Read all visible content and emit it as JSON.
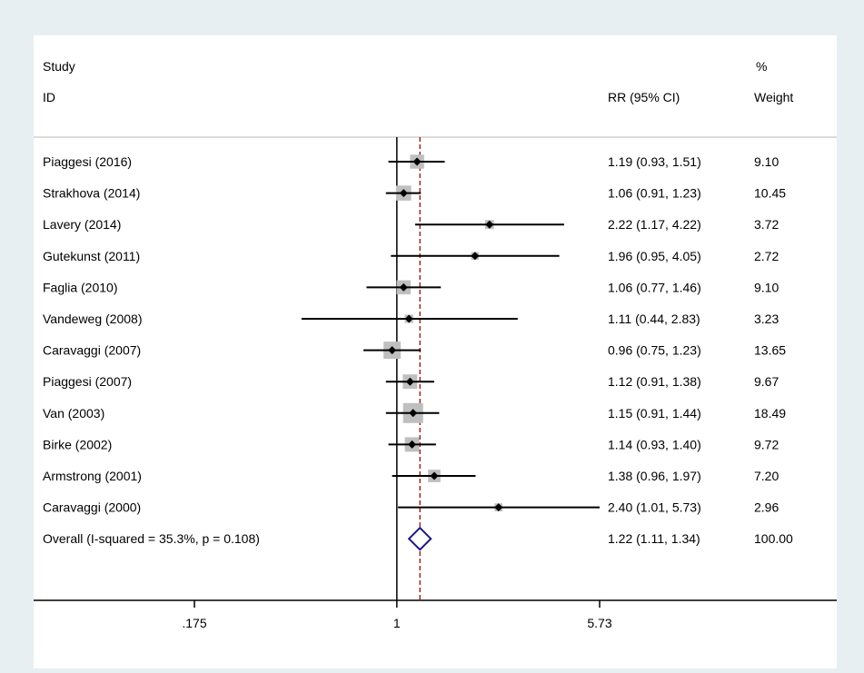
{
  "chart_data": {
    "type": "forest",
    "x_scale": "log",
    "xlim": [
      0.175,
      5.73
    ],
    "ticks": [
      ".175",
      "1",
      "5.73"
    ],
    "tick_values": [
      0.175,
      1,
      5.73
    ],
    "reference_line": 1,
    "overall_effect_line": 1.22,
    "header": {
      "col1_line1": "Study",
      "col1_line2": "ID",
      "col2": "RR (95% CI)",
      "col3_line1": "%",
      "col3_line2": "Weight"
    },
    "studies": [
      {
        "label": "Piaggesi (2016)",
        "rr": 1.19,
        "lo": 0.93,
        "hi": 1.51,
        "rr_text": "1.19 (0.93, 1.51)",
        "weight": "9.10"
      },
      {
        "label": "Strakhova (2014)",
        "rr": 1.06,
        "lo": 0.91,
        "hi": 1.23,
        "rr_text": "1.06 (0.91, 1.23)",
        "weight": "10.45"
      },
      {
        "label": "Lavery (2014)",
        "rr": 2.22,
        "lo": 1.17,
        "hi": 4.22,
        "rr_text": "2.22 (1.17, 4.22)",
        "weight": "3.72"
      },
      {
        "label": "Gutekunst (2011)",
        "rr": 1.96,
        "lo": 0.95,
        "hi": 4.05,
        "rr_text": "1.96 (0.95, 4.05)",
        "weight": "2.72"
      },
      {
        "label": "Faglia (2010)",
        "rr": 1.06,
        "lo": 0.77,
        "hi": 1.46,
        "rr_text": "1.06 (0.77, 1.46)",
        "weight": "9.10"
      },
      {
        "label": "Vandeweg (2008)",
        "rr": 1.11,
        "lo": 0.44,
        "hi": 2.83,
        "rr_text": "1.11 (0.44, 2.83)",
        "weight": "3.23"
      },
      {
        "label": "Caravaggi (2007)",
        "rr": 0.96,
        "lo": 0.75,
        "hi": 1.23,
        "rr_text": "0.96 (0.75, 1.23)",
        "weight": "13.65"
      },
      {
        "label": "Piaggesi (2007)",
        "rr": 1.12,
        "lo": 0.91,
        "hi": 1.38,
        "rr_text": "1.12 (0.91, 1.38)",
        "weight": "9.67"
      },
      {
        "label": "Van (2003)",
        "rr": 1.15,
        "lo": 0.91,
        "hi": 1.44,
        "rr_text": "1.15 (0.91, 1.44)",
        "weight": "18.49"
      },
      {
        "label": "Birke (2002)",
        "rr": 1.14,
        "lo": 0.93,
        "hi": 1.4,
        "rr_text": "1.14 (0.93, 1.40)",
        "weight": "9.72"
      },
      {
        "label": "Armstrong (2001)",
        "rr": 1.38,
        "lo": 0.96,
        "hi": 1.97,
        "rr_text": "1.38 (0.96, 1.97)",
        "weight": "7.20"
      },
      {
        "label": "Caravaggi (2000)",
        "rr": 2.4,
        "lo": 1.01,
        "hi": 5.73,
        "rr_text": "2.40 (1.01, 5.73)",
        "weight": "2.96"
      }
    ],
    "overall": {
      "label": "Overall  (I-squared = 35.3%, p = 0.108)",
      "rr": 1.22,
      "lo": 1.11,
      "hi": 1.34,
      "rr_text": "1.22 (1.11, 1.34)",
      "weight": "100.00"
    },
    "colors": {
      "page_bg": "#e8eff3",
      "plot_bg": "#ffffff",
      "box": "#bfbfbf",
      "point": "#000000",
      "ci_line": "#000000",
      "overall_line": "#a52a2a",
      "diamond": "#1a1a80"
    }
  }
}
